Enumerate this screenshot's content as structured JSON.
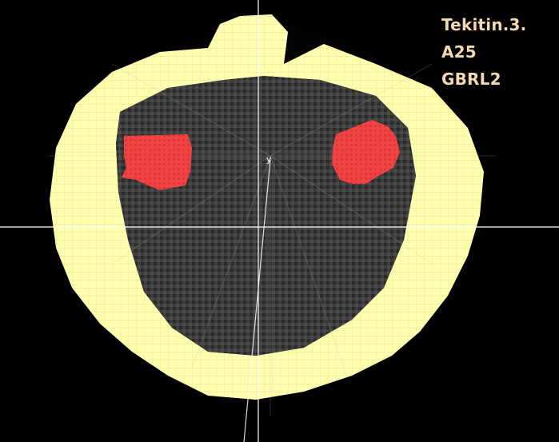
{
  "labels": {
    "line1": "Tekitin.3.",
    "line2": "A25",
    "line3": "GBRL2"
  },
  "axis": {
    "y_tag": "y"
  },
  "colors": {
    "background": "#000000",
    "skull": "#ffffb0",
    "brain": "#3a3a3a",
    "region": "#f04040",
    "label_text": "#f2d9b0",
    "crosshair": "#ffffff"
  }
}
